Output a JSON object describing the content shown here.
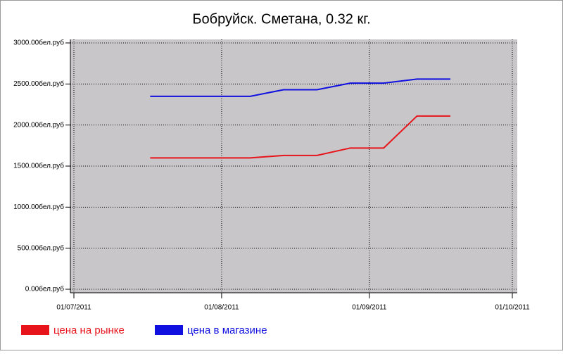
{
  "chart_data": {
    "type": "line",
    "title": "Бобруйск. Сметана, 0.32 кг.",
    "x": [
      "17/07/2011",
      "24/07/2011",
      "31/07/2011",
      "07/08/2011",
      "14/08/2011",
      "21/08/2011",
      "28/08/2011",
      "04/09/2011",
      "11/09/2011",
      "18/09/2011"
    ],
    "series": [
      {
        "name": "цена на рынке",
        "color": "#e8141c",
        "values": [
          1600,
          1600,
          1600,
          1600,
          1630,
          1630,
          1720,
          1720,
          2110,
          2110
        ]
      },
      {
        "name": "цена в магазине",
        "color": "#1010e0",
        "values": [
          2350,
          2350,
          2350,
          2350,
          2430,
          2430,
          2510,
          2510,
          2560,
          2560
        ]
      }
    ],
    "xlim": [
      "01/07/2011",
      "01/10/2011"
    ],
    "xticks": [
      "01/07/2011",
      "01/08/2011",
      "01/09/2011",
      "01/10/2011"
    ],
    "ylim": [
      0,
      3000
    ],
    "yticks": [
      {
        "value": 0,
        "label": "0.00бел.руб"
      },
      {
        "value": 500,
        "label": "500.00бел.руб"
      },
      {
        "value": 1000,
        "label": "1000.00бел.руб"
      },
      {
        "value": 1500,
        "label": "1500.00бел.руб"
      },
      {
        "value": 2000,
        "label": "2000.00бел.руб"
      },
      {
        "value": 2500,
        "label": "2500.00бел.руб"
      },
      {
        "value": 3000,
        "label": "3000.00бел.руб"
      }
    ],
    "grid": true,
    "legend": "bottom"
  }
}
